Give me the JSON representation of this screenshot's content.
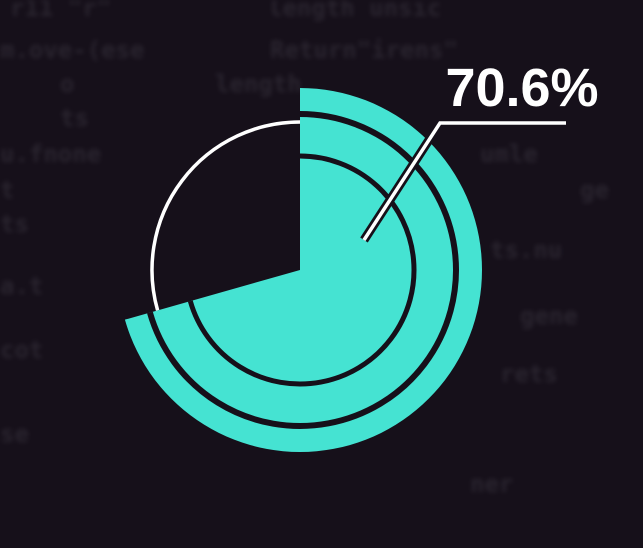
{
  "chart_data": {
    "type": "pie",
    "slices": [
      {
        "label": "",
        "value": 70.6
      },
      {
        "label": "",
        "value": 29.4
      }
    ],
    "data_label": "70.6%",
    "colors": {
      "accent": "#45e3d2",
      "remainder_outline": "#ffffff",
      "background": "#16101a"
    }
  }
}
